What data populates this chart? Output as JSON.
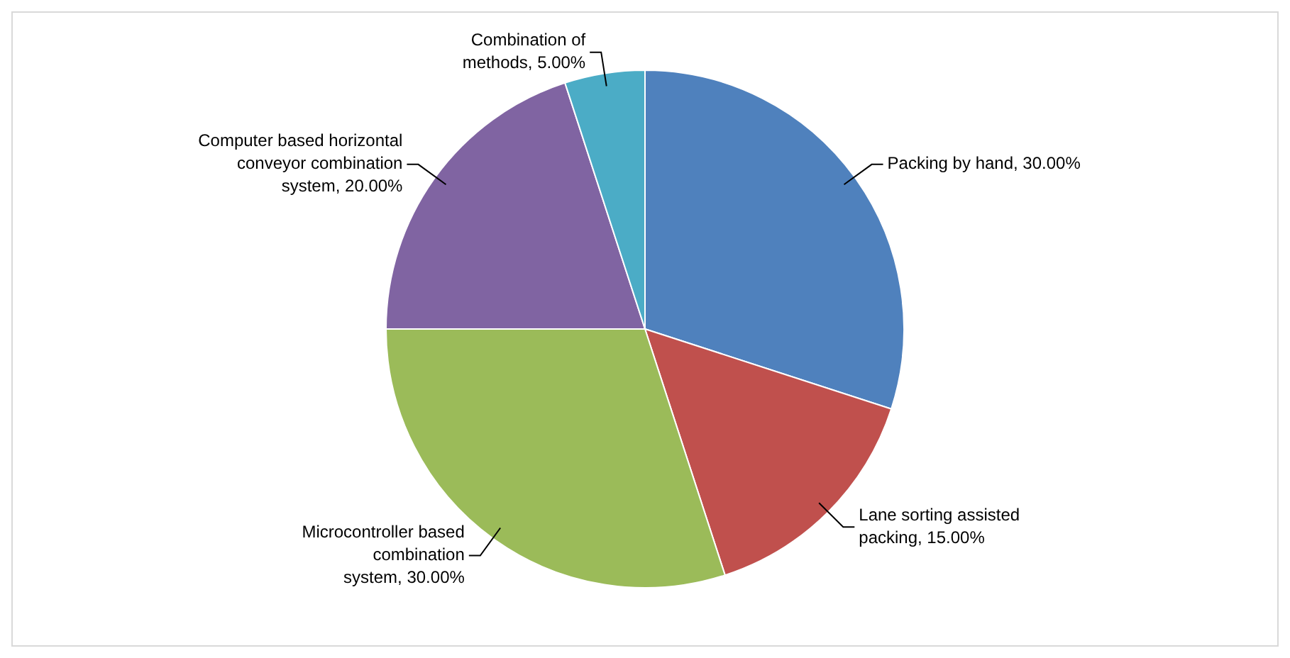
{
  "chart_data": {
    "type": "pie",
    "categories": [
      "Packing by hand",
      "Lane sorting assisted packing",
      "Microcontroller based combination system",
      "Computer based horizontal conveyor combination system",
      "Combination of methods"
    ],
    "values": [
      30,
      15,
      30,
      20,
      5
    ],
    "value_labels": [
      "30.00%",
      "15.00%",
      "30.00%",
      "20.00%",
      "5.00%"
    ],
    "colors": [
      "#4f81bd",
      "#c0504d",
      "#9bbb59",
      "#8064a2",
      "#4bacc6"
    ],
    "legend": false
  }
}
